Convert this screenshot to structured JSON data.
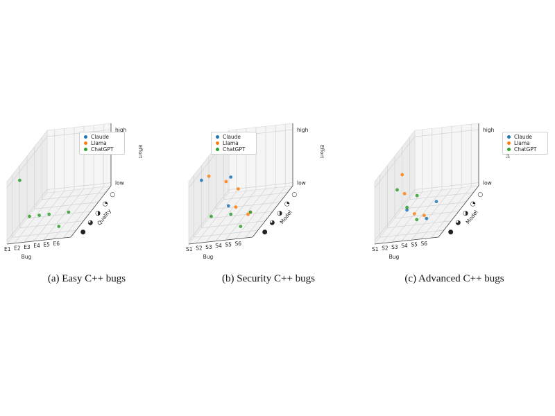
{
  "series_names": [
    "Claude",
    "Llama",
    "ChatGPT"
  ],
  "series_colors": [
    "#1f77b4",
    "#ff7f0e",
    "#2ca02c"
  ],
  "chart_data": [
    {
      "type": "scatter",
      "caption": "(a) Easy C++ bugs",
      "xlabel": "Bug",
      "ylabel": "Quality",
      "zlabel": "Effort",
      "x_ticks": [
        "E1",
        "E2",
        "E3",
        "E4",
        "E5",
        "E6"
      ],
      "y_ticks": [
        "○",
        "◔",
        "◑",
        "◕",
        "●"
      ],
      "z_ticks": [
        "low",
        "high"
      ],
      "zlim": [
        0,
        1
      ],
      "series": [
        {
          "name": "Claude",
          "x": [],
          "y": [],
          "z": []
        },
        {
          "name": "Llama",
          "x": [],
          "y": [],
          "z": []
        },
        {
          "name": "ChatGPT",
          "x": [
            1,
            2,
            3,
            4,
            5,
            6
          ],
          "y": [
            5,
            5,
            5,
            5,
            5,
            5
          ],
          "z": [
            1.0,
            0.3,
            0.3,
            0.3,
            0.05,
            0.3
          ]
        }
      ]
    },
    {
      "type": "scatter",
      "caption": "(b) Security C++ bugs",
      "xlabel": "Bug",
      "ylabel": "Model",
      "zlabel": "Effort",
      "x_ticks": [
        "S1",
        "S2",
        "S3",
        "S4",
        "S5",
        "S6"
      ],
      "y_ticks": [
        "○",
        "◔",
        "◑",
        "◕",
        "●"
      ],
      "z_ticks": [
        "low",
        "high"
      ],
      "zlim": [
        0,
        1
      ],
      "series": [
        {
          "name": "Claude",
          "x": [
            1,
            3,
            4
          ],
          "y": [
            5,
            4,
            5
          ],
          "z": [
            1.0,
            0.3,
            1.0
          ]
        },
        {
          "name": "Llama",
          "x": [
            1,
            2,
            3,
            4,
            5,
            6
          ],
          "y": [
            4,
            3,
            3,
            4,
            4,
            5
          ],
          "z": [
            0.9,
            0.6,
            0.1,
            0.6,
            0.1,
            0.3
          ]
        },
        {
          "name": "ChatGPT",
          "x": [
            2,
            4,
            5,
            6
          ],
          "y": [
            5,
            5,
            5,
            5
          ],
          "z": [
            0.3,
            0.3,
            0.05,
            0.3
          ]
        }
      ]
    },
    {
      "type": "scatter",
      "caption": "(c) Advanced C++ bugs",
      "xlabel": "Bug",
      "ylabel": "Model",
      "zlabel": "Effort",
      "x_ticks": [
        "S1",
        "S2",
        "S3",
        "S4",
        "S5",
        "S6"
      ],
      "y_ticks": [
        "○",
        "◔",
        "◑",
        "◕",
        "●"
      ],
      "z_ticks": [
        "low",
        "high"
      ],
      "zlim": [
        0,
        1
      ],
      "series": [
        {
          "name": "Claude",
          "x": [
            3,
            5,
            6
          ],
          "y": [
            5,
            5,
            5
          ],
          "z": [
            0.4,
            0.2,
            0.5
          ]
        },
        {
          "name": "Llama",
          "x": [
            1,
            2,
            3,
            4
          ],
          "y": [
            3,
            4,
            4,
            4
          ],
          "z": [
            0.75,
            0.55,
            0.15,
            0.1
          ]
        },
        {
          "name": "ChatGPT",
          "x": [
            1,
            2,
            3,
            4
          ],
          "y": [
            1,
            5,
            5,
            5
          ],
          "z": [
            0.0,
            0.8,
            0.45,
            0.2
          ]
        }
      ]
    }
  ]
}
